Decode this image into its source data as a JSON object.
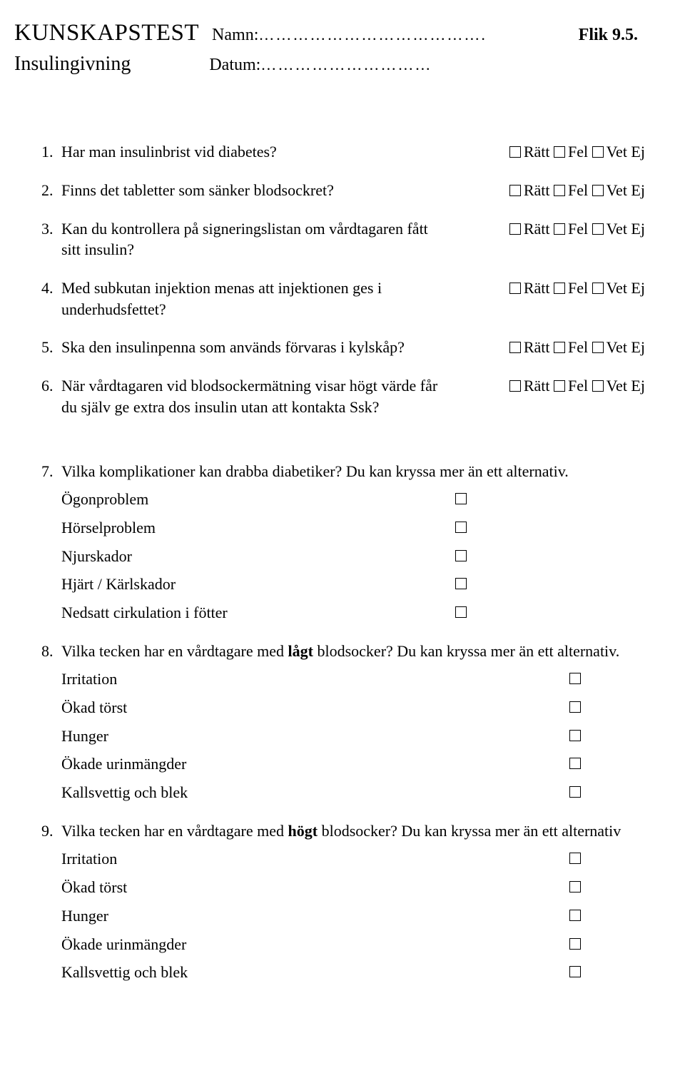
{
  "header": {
    "title": "KUNSKAPSTEST",
    "subtitle": "Insulingivning",
    "name_label": "Namn:",
    "name_dots": "………………………………….",
    "date_label": "Datum:",
    "date_dots": "…………………………",
    "flik": "Flik 9.5."
  },
  "answers": {
    "ratt": "Rätt",
    "fel": "Fel",
    "vetej": "Vet Ej"
  },
  "q1": "Har man insulinbrist vid diabetes?",
  "q2": "Finns det tabletter som sänker blodsockret?",
  "q3": "Kan du kontrollera på signeringslistan om vårdtagaren fått sitt insulin?",
  "q4": "Med subkutan injektion menas att injektionen ges i underhudsfettet?",
  "q5": "Ska den insulinpenna som används förvaras i kylskåp?",
  "q6": "När vårdtagaren vid blodsockermätning visar högt värde får du själv ge extra dos insulin utan att kontakta Ssk?",
  "q7": {
    "text": "Vilka komplikationer kan drabba diabetiker? Du kan kryssa mer än ett alternativ.",
    "opts": [
      "Ögonproblem",
      "Hörselproblem",
      "Njurskador",
      "Hjärt / Kärlskador",
      "Nedsatt cirkulation i fötter"
    ]
  },
  "q8": {
    "prefix": "Vilka tecken har en vårdtagare med ",
    "bold": "lågt",
    "suffix": " blodsocker? Du kan kryssa mer än ett alternativ.",
    "opts": [
      "Irritation",
      "Ökad törst",
      "Hunger",
      "Ökade urinmängder",
      "Kallsvettig och blek"
    ]
  },
  "q9": {
    "prefix": "Vilka tecken har en vårdtagare med ",
    "bold": "högt",
    "suffix": " blodsocker? Du kan kryssa mer än ett alternativ",
    "opts": [
      "Irritation",
      "Ökad törst",
      "Hunger",
      "Ökade urinmängder",
      "Kallsvettig och blek"
    ]
  }
}
